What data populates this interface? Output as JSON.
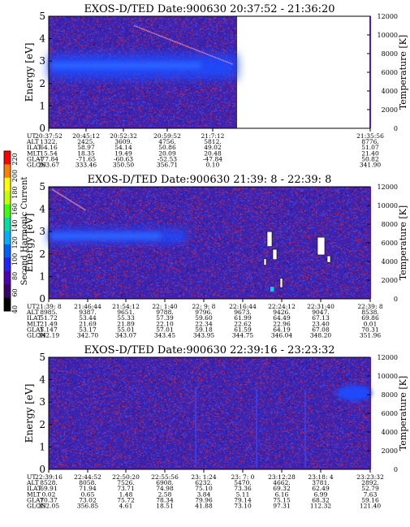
{
  "chart_data": [
    {
      "type": "heatmap",
      "title": "EXOS-D/TED  Date:900630  20:37:52 - 21:36:20",
      "ylabel": "Energy [eV]",
      "y2label": "Temperature [K]",
      "ylim": [
        0,
        5
      ],
      "y_ticks": [
        "0",
        "1",
        "2",
        "3",
        "4",
        "5"
      ],
      "y2lim": [
        0,
        12000
      ],
      "y2_ticks": [
        "0",
        "2000",
        "4000",
        "6000",
        "8000",
        "10000",
        "12000"
      ],
      "data_coverage": "20:37:52 - 21:22",
      "band": {
        "energy_min": 2.2,
        "energy_max": 3.3,
        "peak_energy": 2.8
      },
      "table": {
        "row_labels": [
          "UT",
          "ALT",
          "ILAT",
          "MLT",
          "GLAT",
          "GLON"
        ],
        "columns": [
          [
            "20:37:52",
            "1322.",
            "64.16",
            "15.54",
            "-77.84",
            "263.67"
          ],
          [
            "20:45:12",
            "2425.",
            "58.97",
            "18.35",
            "-71.65",
            "333.46"
          ],
          [
            "20:52:32",
            "3609.",
            "54.14",
            "19.49",
            "-60.63",
            "350.50"
          ],
          [
            "20:59:52",
            "4756.",
            "50.86",
            "20.09",
            "-52.53",
            "356.71"
          ],
          [
            "21:7:12",
            "5812.",
            "49.02",
            "20.48",
            "-47.84",
            "0.10"
          ],
          [
            "21:35:56",
            "8776.",
            "51.07",
            "21.40",
            "50.82",
            "341.90"
          ]
        ]
      }
    },
    {
      "type": "heatmap",
      "title": "EXOS-D/TED  Date:900630  21:39: 8 - 22:39: 8",
      "ylabel": "Energy [eV]",
      "y2label": "Temperature [K]",
      "ylim": [
        0,
        5
      ],
      "y_ticks": [
        "0",
        "1",
        "2",
        "3",
        "4",
        "5"
      ],
      "y2lim": [
        0,
        12000
      ],
      "y2_ticks": [
        "0",
        "2000",
        "4000",
        "6000",
        "8000",
        "10000",
        "12000"
      ],
      "band": {
        "energy_min": 2.5,
        "energy_max": 3.1,
        "peak_energy": 2.8
      },
      "table": {
        "row_labels": [
          "UT",
          "ALT",
          "ILAT",
          "MLT",
          "GLAT",
          "GLON"
        ],
        "columns": [
          [
            "21:39: 8",
            "8985.",
            "51.72",
            "21.49",
            "5.147",
            "342.19"
          ],
          [
            "21:46:44",
            "9387.",
            "53.44",
            "21.69",
            "53.17",
            "342.70"
          ],
          [
            "21:54:12",
            "9651.",
            "55.33",
            "21.89",
            "55.01",
            "343.07"
          ],
          [
            "22: 1:40",
            "9788.",
            "57.39",
            "22.10",
            "57.01",
            "343.45"
          ],
          [
            "22: 9: 8",
            "9796.",
            "59.60",
            "22.34",
            "59.18",
            "343.95"
          ],
          [
            "22:16:44",
            "9673.",
            "61.99",
            "22.62",
            "61.59",
            "344.75"
          ],
          [
            "22:24:12",
            "9426.",
            "64.49",
            "22.96",
            "64.19",
            "346.04"
          ],
          [
            "22:31:40",
            "9047.",
            "67.13",
            "23.40",
            "67.08",
            "348.20"
          ],
          [
            "22:39: 8",
            "8538.",
            "69.86",
            "0.01",
            "70.31",
            "351.96"
          ]
        ]
      }
    },
    {
      "type": "heatmap",
      "title": "EXOS-D/TED  Date:900630  22:39:16 - 23:23:32",
      "ylabel": "Energy [eV]",
      "y2label": "Temperature [K]",
      "ylim": [
        0,
        5
      ],
      "y_ticks": [
        "0",
        "1",
        "2",
        "3",
        "4",
        "5"
      ],
      "y2lim": [
        0,
        12000
      ],
      "y2_ticks": [
        "0",
        "2000",
        "4000",
        "6000",
        "8000",
        "10000",
        "12000"
      ],
      "table": {
        "row_labels": [
          "UT",
          "ALT",
          "ILAT",
          "MLT",
          "GLAT",
          "GLON"
        ],
        "columns": [
          [
            "22:39:16",
            "8528.",
            "69.91",
            "0.02",
            "70.37",
            "352.05"
          ],
          [
            "22:44:52",
            "8058.",
            "71.94",
            "0.65",
            "73.02",
            "356.85"
          ],
          [
            "22:50:20",
            "7526.",
            "73.71",
            "1.48",
            "75.72",
            "4.61"
          ],
          [
            "22:55:56",
            "6908.",
            "74.98",
            "2.58",
            "78.34",
            "18.51"
          ],
          [
            "23: 1:24",
            "6232.",
            "75.10",
            "3.84",
            "79.96",
            "41.88"
          ],
          [
            "23: 7: 0",
            "5470.",
            "73.36",
            "5.11",
            "79.14",
            "73.10"
          ],
          [
            "23:12:28",
            "4662.",
            "69.32",
            "6.16",
            "75.15",
            "97.31"
          ],
          [
            "23:18: 4",
            "3781.",
            "62.49",
            "6.99",
            "68.32",
            "112.32"
          ],
          [
            "23:23:32",
            "2892.",
            "52.79",
            "7.63",
            "59.16",
            "121.40"
          ]
        ]
      }
    }
  ],
  "colorbar": {
    "label": "Second Harmonic Current",
    "ticks": [
      "40",
      "60",
      "80",
      "100",
      "120",
      "140",
      "160",
      "180",
      "200",
      "220"
    ],
    "colors": [
      "#000000",
      "#3a0070",
      "#5000b4",
      "#2222ff",
      "#0060ff",
      "#00b0ff",
      "#00e0a0",
      "#40ff00",
      "#c8ff00",
      "#ffff00",
      "#ff8000",
      "#ff0000"
    ]
  },
  "palette": {
    "background": "#3c24b0",
    "speckle_red": "#b4285a",
    "speckle_blue": "#3a50ff",
    "band_blue": "#1a4cff",
    "temp_line": "#4b20b0"
  }
}
